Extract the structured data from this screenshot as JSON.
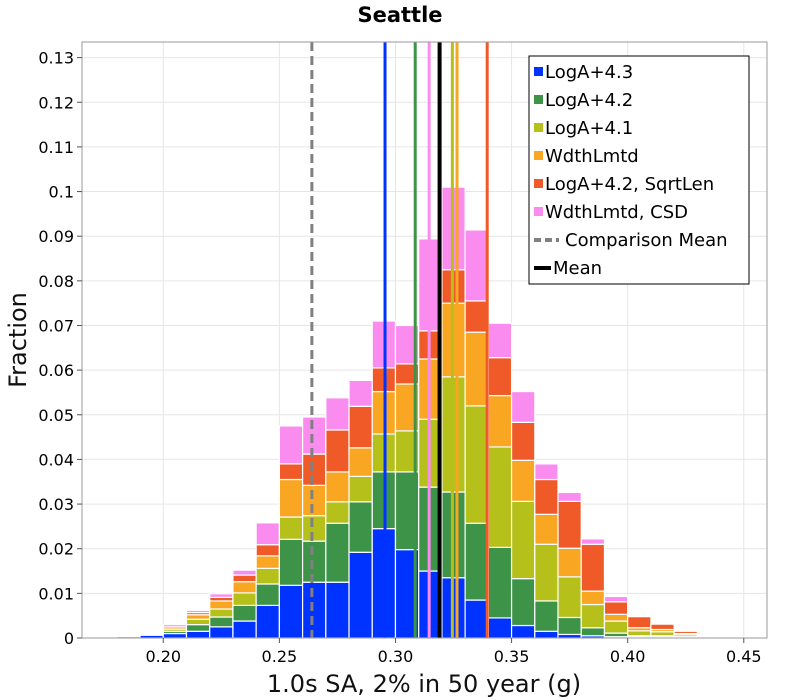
{
  "chart_data": {
    "type": "bar",
    "stacked": true,
    "title": "Seattle",
    "xlabel": "1.0s SA, 2% in 50 year (g)",
    "ylabel": "Fraction",
    "xlim": [
      0.165,
      0.46
    ],
    "ylim": [
      0,
      0.1335
    ],
    "x_ticks": [
      "0.20",
      "0.25",
      "0.30",
      "0.35",
      "0.40",
      "0.45"
    ],
    "y_ticks": [
      "0",
      "0.01",
      "0.02",
      "0.03",
      "0.04",
      "0.05",
      "0.06",
      "0.07",
      "0.08",
      "0.09",
      "0.1",
      "0.11",
      "0.12",
      "0.13"
    ],
    "grid": true,
    "legend_position": "top-right",
    "bin_width": 0.01,
    "bin_centers": [
      0.175,
      0.185,
      0.195,
      0.205,
      0.215,
      0.225,
      0.235,
      0.245,
      0.255,
      0.265,
      0.275,
      0.285,
      0.295,
      0.305,
      0.315,
      0.325,
      0.335,
      0.345,
      0.355,
      0.365,
      0.375,
      0.385,
      0.395,
      0.405,
      0.415,
      0.425,
      0.435,
      0.445,
      0.455
    ],
    "series": [
      {
        "name": "LogA+4.3",
        "color": "#0033ff",
        "values": [
          0.0002,
          0.0003,
          0.0006,
          0.001,
          0.0015,
          0.0025,
          0.0038,
          0.0073,
          0.0118,
          0.0125,
          0.0125,
          0.0192,
          0.0245,
          0.0198,
          0.015,
          0.0135,
          0.0085,
          0.0045,
          0.0028,
          0.0015,
          0.0008,
          0.0005,
          0.0003,
          0.0002,
          0.0002,
          0.0001,
          0.0001,
          0.0,
          0.0
        ]
      },
      {
        "name": "LogA+4.2",
        "color": "#3d9348",
        "values": [
          0.0,
          0.0,
          0.0,
          0.0005,
          0.0015,
          0.0022,
          0.0035,
          0.0048,
          0.0103,
          0.0092,
          0.0132,
          0.0113,
          0.0127,
          0.0174,
          0.0188,
          0.0192,
          0.0172,
          0.0158,
          0.0105,
          0.0068,
          0.0038,
          0.0018,
          0.0008,
          0.0003,
          0.0003,
          0.0002,
          0.0001,
          0.0,
          0.0
        ]
      },
      {
        "name": "LogA+4.1",
        "color": "#b5c01b",
        "values": [
          0.0,
          0.0,
          0.0,
          0.0005,
          0.0012,
          0.0018,
          0.0028,
          0.0035,
          0.005,
          0.0057,
          0.0048,
          0.0057,
          0.0085,
          0.0092,
          0.0152,
          0.0258,
          0.0263,
          0.0225,
          0.0173,
          0.0127,
          0.0091,
          0.0052,
          0.0027,
          0.0011,
          0.0009,
          0.0004,
          0.0002,
          0.0001,
          0.0
        ]
      },
      {
        "name": "WdthLmtd",
        "color": "#f9a623",
        "values": [
          0.0,
          0.0,
          0.0,
          0.0005,
          0.001,
          0.0018,
          0.0025,
          0.0028,
          0.0084,
          0.0068,
          0.0067,
          0.0064,
          0.0095,
          0.0105,
          0.0135,
          0.0165,
          0.0165,
          0.0115,
          0.0092,
          0.0067,
          0.0064,
          0.003,
          0.0015,
          0.0007,
          0.0005,
          0.0003,
          0.0001,
          0.0,
          0.0
        ]
      },
      {
        "name": "LogA+4.2, SqrtLen",
        "color": "#f05a28",
        "values": [
          0.0,
          0.0,
          0.0,
          0.0,
          0.0005,
          0.0008,
          0.0015,
          0.0025,
          0.0035,
          0.007,
          0.0094,
          0.0093,
          0.0053,
          0.0045,
          0.0063,
          0.0075,
          0.007,
          0.0085,
          0.0085,
          0.0078,
          0.0105,
          0.0105,
          0.0028,
          0.0025,
          0.0012,
          0.0005,
          0.0002,
          0.0001,
          0.0
        ]
      },
      {
        "name": "WdthLmtd, CSD",
        "color": "#fa8cf0",
        "values": [
          0.0,
          0.0,
          0.0,
          0.0005,
          0.0005,
          0.0008,
          0.0011,
          0.0049,
          0.0085,
          0.0083,
          0.0072,
          0.0058,
          0.0105,
          0.0086,
          0.0206,
          0.0185,
          0.0159,
          0.0077,
          0.0069,
          0.0035,
          0.002,
          0.0012,
          0.0012,
          0.0002,
          0.0,
          0.0,
          0.0,
          0.0,
          0.0
        ]
      }
    ],
    "vlines": [
      {
        "series": "LogA+4.3",
        "x": 0.2955,
        "color": "#0033ff",
        "style": "solid"
      },
      {
        "series": "LogA+4.2",
        "x": 0.3085,
        "color": "#3d9348",
        "style": "solid"
      },
      {
        "series": "WdthLmtd, CSD",
        "x": 0.3145,
        "color": "#fa8cf0",
        "style": "solid"
      },
      {
        "series": "LogA+4.1",
        "x": 0.3245,
        "color": "#b5c01b",
        "style": "solid"
      },
      {
        "series": "WdthLmtd",
        "x": 0.3265,
        "color": "#f9a623",
        "style": "solid"
      },
      {
        "series": "LogA+4.2, SqrtLen",
        "x": 0.3395,
        "color": "#f05a28",
        "style": "solid"
      },
      {
        "series": "Comparison Mean",
        "x": 0.264,
        "color": "#808080",
        "style": "dashed"
      },
      {
        "series": "Mean",
        "x": 0.319,
        "color": "#000000",
        "style": "solid"
      }
    ],
    "legend": [
      {
        "label": "LogA+4.3",
        "color": "#0033ff",
        "symbol": "square"
      },
      {
        "label": "LogA+4.2",
        "color": "#3d9348",
        "symbol": "square"
      },
      {
        "label": "LogA+4.1",
        "color": "#b5c01b",
        "symbol": "square"
      },
      {
        "label": "WdthLmtd",
        "color": "#f9a623",
        "symbol": "square"
      },
      {
        "label": "LogA+4.2, SqrtLen",
        "color": "#f05a28",
        "symbol": "square"
      },
      {
        "label": "WdthLmtd, CSD",
        "color": "#fa8cf0",
        "symbol": "square"
      },
      {
        "label": "Comparison Mean",
        "color": "#808080",
        "symbol": "dashed-line"
      },
      {
        "label": "Mean",
        "color": "#000000",
        "symbol": "line"
      }
    ]
  }
}
